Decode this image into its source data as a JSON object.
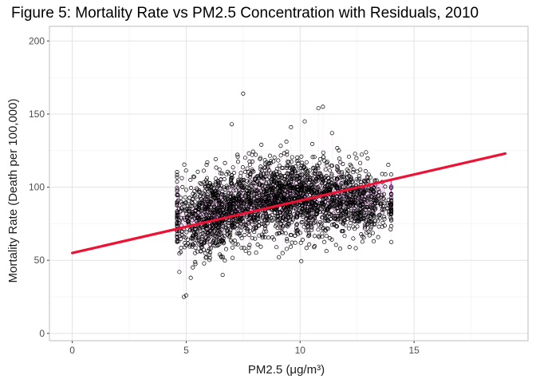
{
  "chart_data": {
    "type": "scatter",
    "title": "Figure 5: Mortality Rate vs PM2.5 Concentration with Residuals, 2010",
    "xlabel": "PM2.5",
    "xlabel_unit": "(μg/m³)",
    "ylabel": "Mortality Rate (Death per 100,000)",
    "xlim": [
      -1,
      20
    ],
    "ylim": [
      -5,
      210
    ],
    "x_ticks": [
      0,
      5,
      10,
      15
    ],
    "y_ticks": [
      0,
      50,
      100,
      150,
      200
    ],
    "grid": true,
    "legend": "none",
    "fit_line": {
      "x": [
        0,
        19
      ],
      "y": [
        55,
        123
      ]
    },
    "point_clusters": [
      {
        "cx": 9.8,
        "cy": 93,
        "sx": 1.6,
        "sy": 13,
        "n": 1400
      },
      {
        "cx": 6.4,
        "cy": 83,
        "sx": 1.0,
        "sy": 13,
        "n": 650
      },
      {
        "cx": 12.6,
        "cy": 88,
        "sx": 0.8,
        "sy": 10,
        "n": 350
      },
      {
        "cx": 5.6,
        "cy": 72,
        "sx": 0.6,
        "sy": 12,
        "n": 150
      }
    ],
    "outliers": [
      {
        "x": 7.5,
        "y": 164
      },
      {
        "x": 7.0,
        "y": 143
      },
      {
        "x": 11.0,
        "y": 155
      },
      {
        "x": 10.8,
        "y": 154
      },
      {
        "x": 4.9,
        "y": 25
      },
      {
        "x": 5.0,
        "y": 26
      },
      {
        "x": 5.2,
        "y": 38
      },
      {
        "x": 4.7,
        "y": 42
      },
      {
        "x": 10.2,
        "y": 145
      },
      {
        "x": 6.6,
        "y": 40
      },
      {
        "x": 9.6,
        "y": 141
      },
      {
        "x": 11.4,
        "y": 137
      },
      {
        "x": 13.9,
        "y": 83
      },
      {
        "x": 13.6,
        "y": 109
      },
      {
        "x": 8.3,
        "y": 129
      }
    ],
    "colors": {
      "points_stroke": "#000000",
      "residual_segments": "#c030c0",
      "fit_line": "#ee1133",
      "grid": "#e3e3e3",
      "panel_border": "#bdbdbd"
    }
  }
}
